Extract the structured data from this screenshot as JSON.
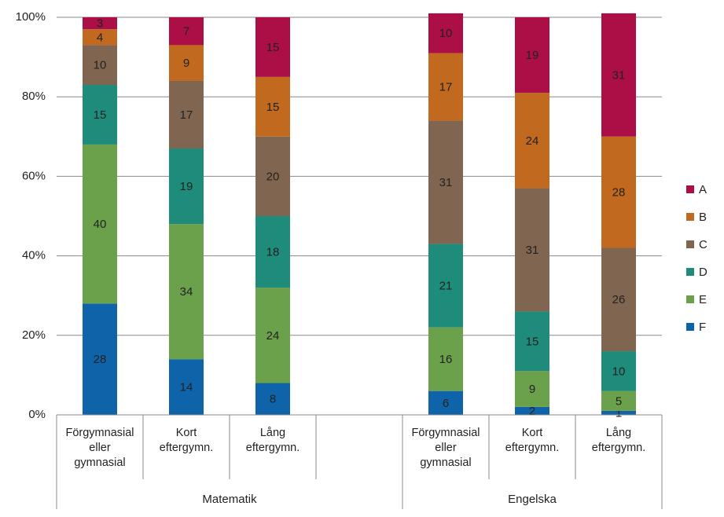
{
  "chart_data": {
    "type": "stacked_bar",
    "categories": [
      "Förgymnasial eller gymnasial",
      "Kort eftergymn.",
      "Lång eftergymn.",
      null,
      "Förgymnasial eller gymnasial",
      "Kort eftergymn.",
      "Lång eftergymn."
    ],
    "groups": [
      {
        "name": "Matematik",
        "span": 4
      },
      {
        "name": "Engelska",
        "span": 3
      }
    ],
    "series": [
      {
        "name": "F",
        "color": "#0f63a8",
        "values": [
          28,
          14,
          8,
          null,
          6,
          2,
          1
        ]
      },
      {
        "name": "E",
        "color": "#6ba14b",
        "values": [
          40,
          34,
          24,
          null,
          16,
          9,
          5
        ]
      },
      {
        "name": "D",
        "color": "#1f8b7b",
        "values": [
          15,
          19,
          18,
          null,
          21,
          15,
          10
        ]
      },
      {
        "name": "C",
        "color": "#806550",
        "values": [
          10,
          17,
          20,
          null,
          31,
          31,
          26
        ]
      },
      {
        "name": "B",
        "color": "#c0691f",
        "values": [
          4,
          9,
          15,
          null,
          17,
          24,
          28
        ]
      },
      {
        "name": "A",
        "color": "#ac0f45",
        "values": [
          3,
          7,
          15,
          null,
          10,
          19,
          31
        ]
      }
    ],
    "ylim": [
      0,
      100
    ],
    "yticks": [
      {
        "value": 0,
        "label": "0%"
      },
      {
        "value": 20,
        "label": "20%"
      },
      {
        "value": 40,
        "label": "40%"
      },
      {
        "value": 60,
        "label": "60%"
      },
      {
        "value": 80,
        "label": "80%"
      },
      {
        "value": 100,
        "label": "100%"
      }
    ],
    "grid": true,
    "legend": "right"
  }
}
